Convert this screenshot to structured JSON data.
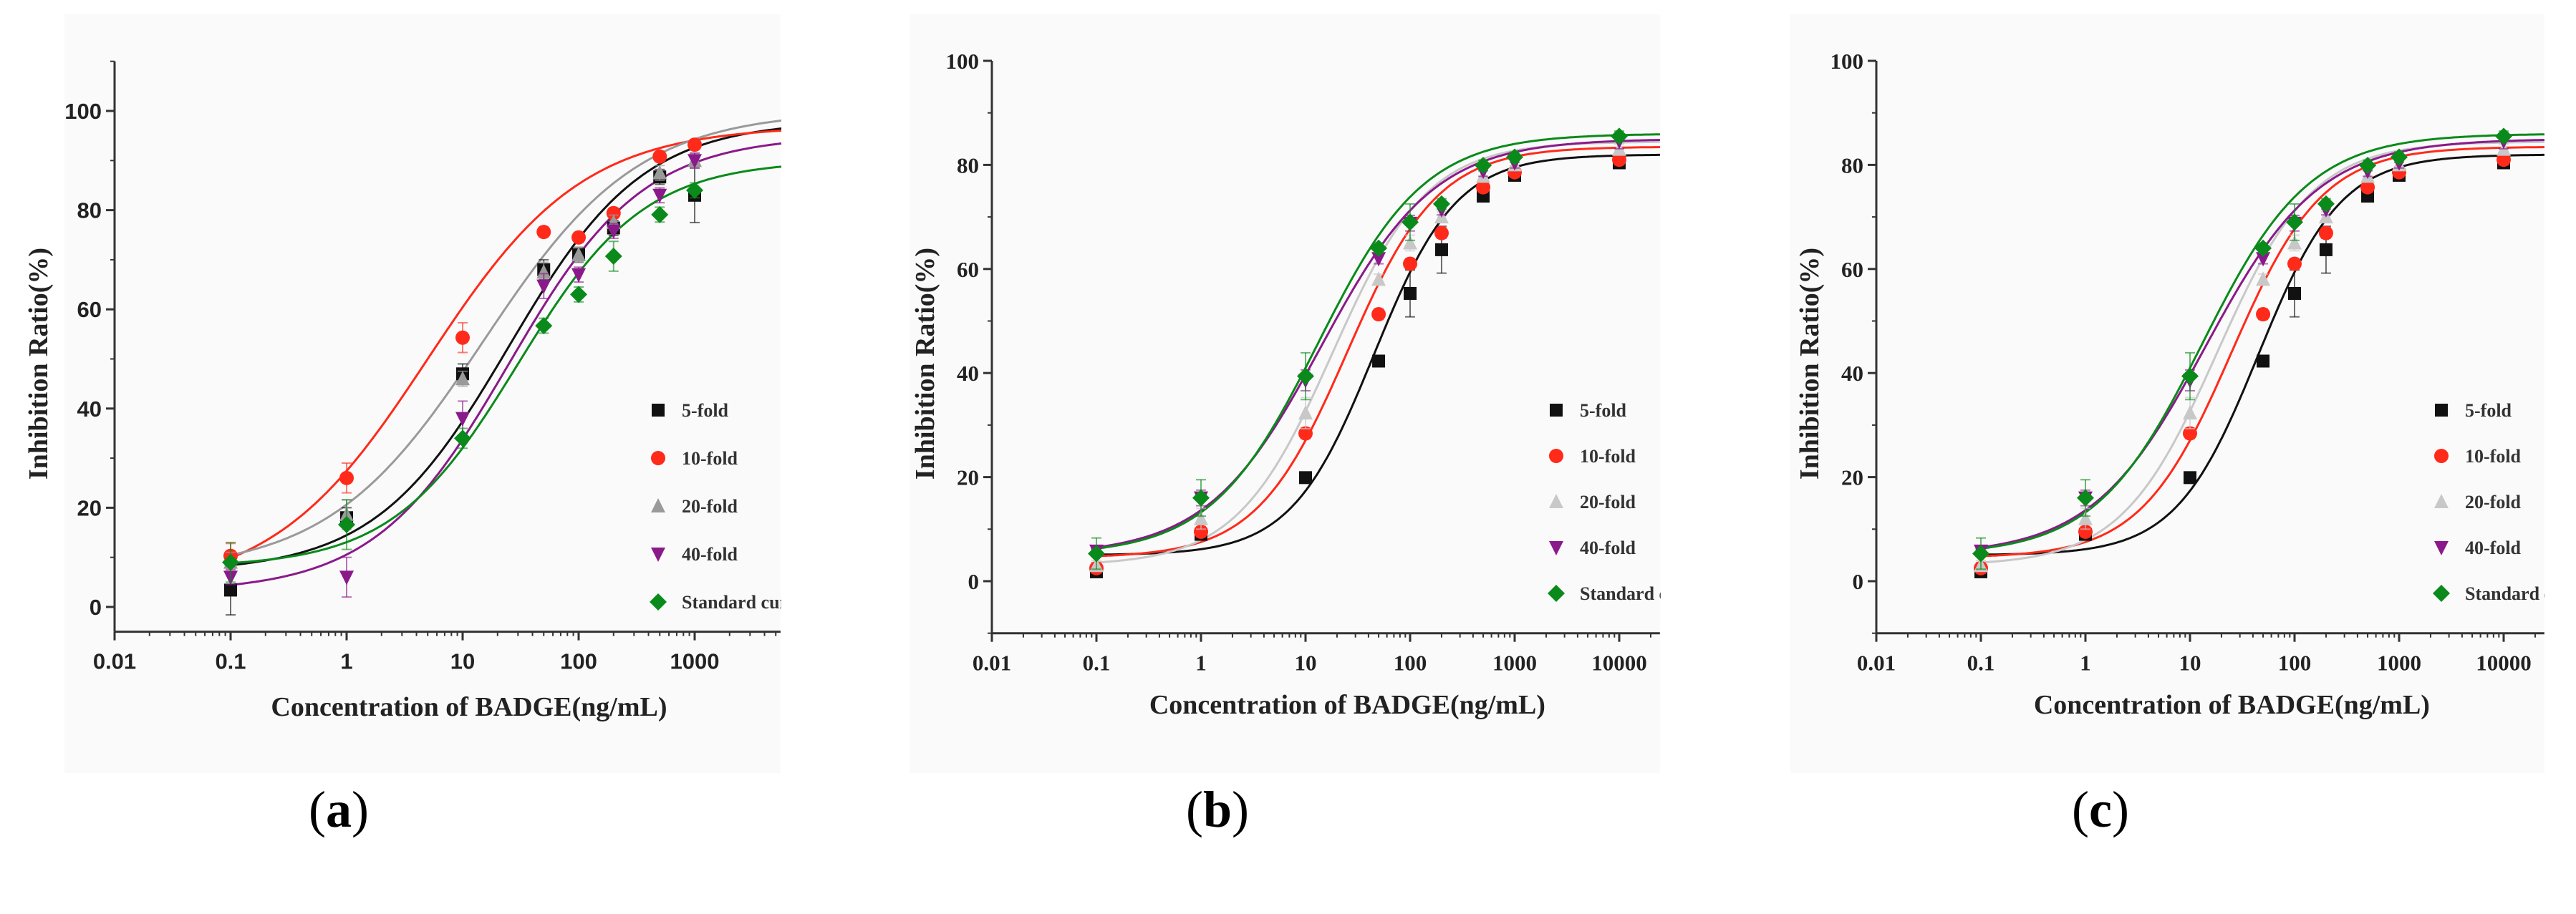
{
  "colors": {
    "5-fold": "#111111",
    "10-fold": "#ff2a1a",
    "20-fold": "#9a9a9a",
    "20-fold-light": "#c8c8c8",
    "40-fold": "#8a1a8a",
    "Standard curve": "#0a8a1a"
  },
  "chart_data": [
    {
      "panel_label": "a",
      "type": "scatter",
      "xscale": "log",
      "xlabel": "Concentration of BADGE(ng/mL)",
      "ylabel": "Inhibition Ratio(%)",
      "xlim": [
        0.01,
        5500
      ],
      "ylim": [
        -5,
        110
      ],
      "x_ticks": [
        "0.01",
        "0.1",
        "1",
        "10",
        "100",
        "1000"
      ],
      "y_ticks": [
        "0",
        "20",
        "40",
        "60",
        "80",
        "100"
      ],
      "legend": [
        "5-fold",
        "10-fold",
        "20-fold",
        "40-fold",
        "Standard cur"
      ],
      "legend_position": "bottom-right",
      "x": [
        0.1,
        1,
        10,
        50,
        100,
        200,
        500,
        1000
      ],
      "series": [
        {
          "name": "5-fold",
          "marker": "square",
          "values": [
            3.4,
            18,
            47,
            68,
            71,
            76.4,
            86.7,
            83
          ],
          "err": [
            5,
            2,
            2,
            2,
            1.5,
            1.5,
            1.5,
            5.5
          ],
          "fit": {
            "bottom": 7,
            "top": 98,
            "ec50": 25,
            "slope": 0.75
          }
        },
        {
          "name": "10-fold",
          "marker": "circle",
          "values": [
            10.3,
            26,
            54.3,
            75.6,
            74.5,
            79.4,
            90.8,
            93.2
          ],
          "err": [
            2.5,
            3,
            3,
            1,
            1,
            1,
            1,
            1
          ],
          "fit": {
            "bottom": 3,
            "top": 97,
            "ec50": 5,
            "slope": 0.65
          }
        },
        {
          "name": "20-fold",
          "marker": "triangle-up",
          "values": [
            9,
            18.6,
            46,
            67.5,
            71,
            77.5,
            87.5,
            90
          ],
          "err": [
            2,
            3,
            1.5,
            2,
            1.5,
            1.5,
            1.5,
            1.5
          ],
          "fit": {
            "bottom": 7,
            "top": 100,
            "ec50": 15,
            "slope": 0.65
          }
        },
        {
          "name": "40-fold",
          "marker": "triangle-down",
          "values": [
            6,
            6,
            38,
            64.7,
            67,
            75.8,
            83,
            90
          ],
          "err": [
            1.5,
            4,
            3.5,
            2.5,
            1.5,
            1.5,
            1.5,
            1.5
          ],
          "fit": {
            "bottom": 3,
            "top": 95,
            "ec50": 25,
            "slope": 0.75
          }
        },
        {
          "name": "Standard curve",
          "marker": "diamond",
          "values": [
            9,
            16.6,
            34,
            56.7,
            63,
            70.7,
            79.1,
            84
          ],
          "err": [
            4,
            5,
            2,
            1.5,
            1.5,
            3,
            1.5,
            1.5
          ],
          "fit": {
            "bottom": 8,
            "top": 90,
            "ec50": 30,
            "slope": 0.8
          }
        }
      ]
    },
    {
      "panel_label": "b",
      "type": "scatter",
      "xscale": "log",
      "xlabel": "Concentration of BADGE(ng/mL)",
      "ylabel": "Inhibition Ratio(%)",
      "xlim": [
        0.01,
        24500
      ],
      "ylim": [
        -10,
        100
      ],
      "x_ticks": [
        "0.01",
        "0.1",
        "1",
        "10",
        "100",
        "1000",
        "10000"
      ],
      "y_ticks": [
        "0",
        "20",
        "40",
        "60",
        "80",
        "100"
      ],
      "legend": [
        "5-fold",
        "10-fold",
        "20-fold",
        "40-fold",
        "Standard c"
      ],
      "legend_position": "bottom-right",
      "x": [
        0.1,
        1,
        10,
        50,
        100,
        200,
        500,
        1000,
        10000
      ],
      "series": [
        {
          "name": "5-fold",
          "marker": "square",
          "values": [
            1.8,
            9,
            19.9,
            42.3,
            55.3,
            63.7,
            74,
            78,
            80.4
          ],
          "err": [
            1,
            1,
            1,
            1,
            4.5,
            4.5,
            1,
            1,
            1
          ],
          "fit": {
            "bottom": 5,
            "top": 82,
            "ec50": 45,
            "slope": 1.1
          }
        },
        {
          "name": "10-fold",
          "marker": "circle",
          "values": [
            2.5,
            9.5,
            28.4,
            51.3,
            61,
            66.9,
            75.7,
            78.6,
            81
          ],
          "err": [
            1,
            1,
            1,
            1,
            1,
            1,
            1,
            1,
            1
          ],
          "fit": {
            "bottom": 4.5,
            "top": 83.5,
            "ec50": 25,
            "slope": 1.0
          }
        },
        {
          "name": "20-fold",
          "marker": "triangle-up",
          "values": [
            3,
            12,
            32.3,
            58,
            65,
            70,
            77.8,
            80,
            83
          ],
          "err": [
            1,
            2,
            3,
            1,
            1.5,
            1,
            1,
            1,
            1
          ],
          "fit": {
            "bottom": 3,
            "top": 84.5,
            "ec50": 18,
            "slope": 0.95
          }
        },
        {
          "name": "40-fold",
          "marker": "triangle-down",
          "values": [
            5.8,
            16,
            38.6,
            62,
            68.8,
            71.4,
            78.8,
            80.4,
            84.6
          ],
          "err": [
            1,
            1.5,
            2,
            1,
            1.5,
            1,
            1,
            1,
            1.5
          ],
          "fit": {
            "bottom": 5,
            "top": 85,
            "ec50": 14,
            "slope": 0.8
          }
        },
        {
          "name": "Standard curve",
          "marker": "diamond",
          "values": [
            5.3,
            16,
            39.4,
            64,
            69,
            72.5,
            79.9,
            81.5,
            85.5
          ],
          "err": [
            3,
            3.5,
            4.5,
            1,
            3.5,
            1,
            1,
            1,
            1
          ],
          "fit": {
            "bottom": 5,
            "top": 86,
            "ec50": 13,
            "slope": 0.85
          }
        }
      ]
    },
    {
      "panel_label": "c",
      "type": "scatter",
      "xscale": "log",
      "xlabel": "Concentration of BADGE(ng/mL)",
      "ylabel": "Inhibition Ratio(%)",
      "xlim": [
        0.01,
        24500
      ],
      "ylim": [
        -10,
        100
      ],
      "x_ticks": [
        "0.01",
        "0.1",
        "1",
        "10",
        "100",
        "1000",
        "10000"
      ],
      "y_ticks": [
        "0",
        "20",
        "40",
        "60",
        "80",
        "100"
      ],
      "legend": [
        "5-fold",
        "10-fold",
        "20-fold",
        "40-fold",
        "Standard c"
      ],
      "legend_position": "bottom-right",
      "x": [
        0.1,
        1,
        10,
        50,
        100,
        200,
        500,
        1000,
        10000
      ],
      "series": [
        {
          "name": "5-fold",
          "marker": "square",
          "values": [
            1.8,
            9,
            19.9,
            42.3,
            55.3,
            63.7,
            74,
            78,
            80.4
          ],
          "err": [
            1,
            1,
            1,
            1,
            4.5,
            4.5,
            1,
            1,
            1
          ],
          "fit": {
            "bottom": 5,
            "top": 82,
            "ec50": 45,
            "slope": 1.1
          }
        },
        {
          "name": "10-fold",
          "marker": "circle",
          "values": [
            2.5,
            9.5,
            28.4,
            51.3,
            61,
            66.9,
            75.7,
            78.6,
            81
          ],
          "err": [
            1,
            1,
            1,
            1,
            1,
            1,
            1,
            1,
            1
          ],
          "fit": {
            "bottom": 4.5,
            "top": 83.5,
            "ec50": 25,
            "slope": 1.0
          }
        },
        {
          "name": "20-fold",
          "marker": "triangle-up",
          "values": [
            3,
            12,
            32.3,
            58,
            65,
            70,
            77.8,
            80,
            83
          ],
          "err": [
            1,
            2,
            3,
            1,
            1.5,
            1,
            1,
            1,
            1
          ],
          "fit": {
            "bottom": 3,
            "top": 84.5,
            "ec50": 18,
            "slope": 0.95
          }
        },
        {
          "name": "40-fold",
          "marker": "triangle-down",
          "values": [
            5.8,
            16,
            38.6,
            62,
            68.8,
            71.4,
            78.8,
            80.4,
            84.6
          ],
          "err": [
            1,
            1.5,
            2,
            1,
            1.5,
            1,
            1,
            1,
            1.5
          ],
          "fit": {
            "bottom": 5,
            "top": 85,
            "ec50": 14,
            "slope": 0.8
          }
        },
        {
          "name": "Standard curve",
          "marker": "diamond",
          "values": [
            5.3,
            16,
            39.4,
            64,
            69,
            72.5,
            79.9,
            81.5,
            85.5
          ],
          "err": [
            3,
            3.5,
            4.5,
            1,
            3.5,
            1,
            1,
            1,
            1
          ],
          "fit": {
            "bottom": 5,
            "top": 86,
            "ec50": 13,
            "slope": 0.85
          }
        }
      ]
    }
  ]
}
